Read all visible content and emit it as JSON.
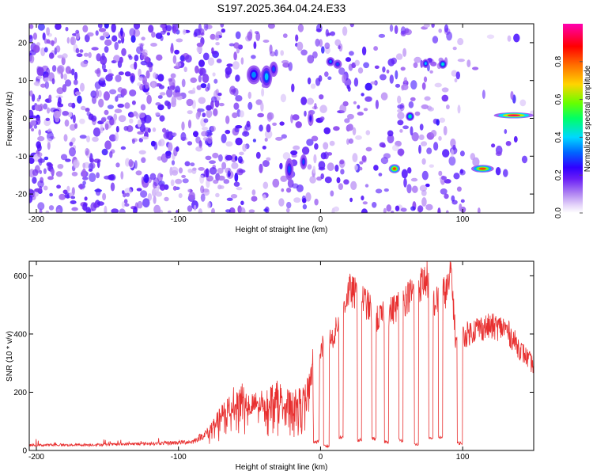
{
  "figure_title": "S197.2025.364.04.24.E33",
  "chart_data": [
    {
      "type": "heatmap",
      "title": "S197.2025.364.04.24.E33",
      "xlabel": "Height of straight line (km)",
      "ylabel": "Frequency (Hz)",
      "xlim": [
        -205,
        150
      ],
      "ylim": [
        -25,
        25
      ],
      "xticks": [
        -200,
        -100,
        0,
        100
      ],
      "yticks": [
        -20,
        -10,
        0,
        10,
        20
      ],
      "colorbar": {
        "label": "Normalized spectral amplitude",
        "range": [
          0,
          1
        ],
        "ticks": [
          "0.0",
          "0.2",
          "0.4",
          "0.6",
          "0.8"
        ],
        "colors": [
          "#ffffff",
          "#c9a8f0",
          "#8a3df0",
          "#3a00ff",
          "#0060ff",
          "#00d8ff",
          "#00ff80",
          "#c0ff00",
          "#ffa000",
          "#ff0000",
          "#ff00c0"
        ]
      },
      "noise_region": {
        "x": [
          -205,
          150
        ],
        "y": [
          -25,
          25
        ]
      },
      "features": [
        {
          "x": -47,
          "y": 11.5,
          "dx": 5,
          "dy": 2.5,
          "amp": 0.35
        },
        {
          "x": -38,
          "y": 11.0,
          "dx": 4,
          "dy": 3,
          "amp": 0.4
        },
        {
          "x": -33,
          "y": 13.0,
          "dx": 3,
          "dy": 2,
          "amp": 0.3
        },
        {
          "x": -22,
          "y": -13.5,
          "dx": 3,
          "dy": 3,
          "amp": 0.3
        },
        {
          "x": -12,
          "y": -11.5,
          "dx": 2.5,
          "dy": 2,
          "amp": 0.3
        },
        {
          "x": -7,
          "y": 0.0,
          "dx": 2,
          "dy": 2,
          "amp": 0.25
        },
        {
          "x": 7,
          "y": 15.0,
          "dx": 3,
          "dy": 1.2,
          "amp": 0.35
        },
        {
          "x": 12,
          "y": 14.3,
          "dx": 3,
          "dy": 1.2,
          "amp": 0.3
        },
        {
          "x": 52,
          "y": -13.3,
          "dx": 4,
          "dy": 1.2,
          "amp": 0.85
        },
        {
          "x": 63,
          "y": 0.5,
          "dx": 3,
          "dy": 1.2,
          "amp": 0.5
        },
        {
          "x": 74,
          "y": 14.5,
          "dx": 2.5,
          "dy": 1.2,
          "amp": 0.4
        },
        {
          "x": 86,
          "y": 14.3,
          "dx": 3,
          "dy": 1.2,
          "amp": 0.45
        },
        {
          "x": 114,
          "y": -13.3,
          "dx": 8,
          "dy": 1.0,
          "amp": 0.85
        },
        {
          "x": 136,
          "y": 0.8,
          "dx": 14,
          "dy": 0.8,
          "amp": 0.95
        }
      ]
    },
    {
      "type": "line",
      "xlabel": "Height of straight line (km)",
      "ylabel": "SNR (10 * v/v)",
      "xlim": [
        -205,
        150
      ],
      "ylim": [
        0,
        650
      ],
      "xticks": [
        -200,
        -100,
        0,
        100
      ],
      "yticks": [
        0,
        200,
        400,
        600
      ],
      "series": [
        {
          "name": "SNR",
          "color": "#e83030",
          "x": [
            -205,
            -150,
            -110,
            -90,
            -80,
            -70,
            -60,
            -55,
            -50,
            -40,
            -30,
            -20,
            -10,
            -5,
            0,
            5,
            10,
            15,
            20,
            30,
            40,
            50,
            60,
            70,
            75,
            80,
            90,
            92,
            95,
            100,
            110,
            120,
            130,
            140,
            150
          ],
          "y": [
            18,
            20,
            25,
            30,
            60,
            120,
            180,
            200,
            150,
            170,
            190,
            160,
            180,
            300,
            350,
            370,
            400,
            480,
            550,
            520,
            450,
            480,
            520,
            570,
            590,
            500,
            560,
            620,
            380,
            390,
            420,
            425,
            420,
            350,
            290
          ]
        }
      ],
      "dropouts": [
        {
          "x": [
            -5,
            -1
          ],
          "y": 30
        },
        {
          "x": [
            2,
            6
          ],
          "y": 15
        },
        {
          "x": [
            13,
            16
          ],
          "y": 45
        },
        {
          "x": [
            26,
            29
          ],
          "y": 35
        },
        {
          "x": [
            36,
            39
          ],
          "y": 40
        },
        {
          "x": [
            45,
            48
          ],
          "y": 30
        },
        {
          "x": [
            55,
            58
          ],
          "y": 35
        },
        {
          "x": [
            66,
            69
          ],
          "y": 20
        },
        {
          "x": [
            76,
            79
          ],
          "y": 40
        },
        {
          "x": [
            83,
            86
          ],
          "y": 45
        },
        {
          "x": [
            96,
            100
          ],
          "y": 25
        }
      ]
    }
  ]
}
